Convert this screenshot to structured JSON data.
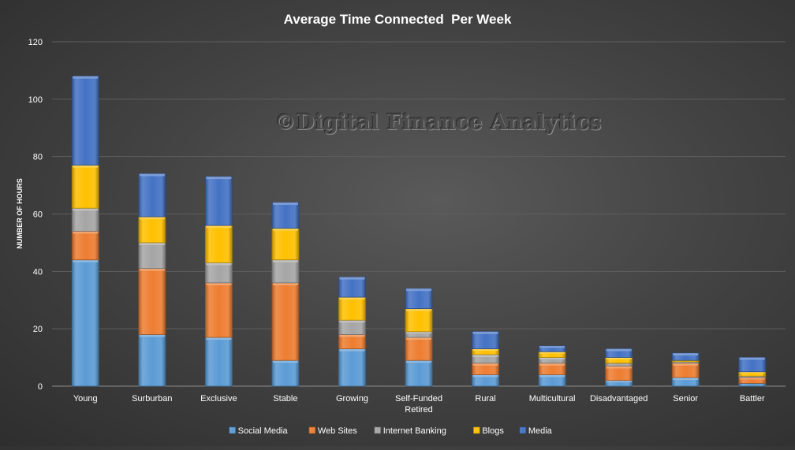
{
  "chart_data": {
    "type": "bar",
    "stacked": true,
    "title": "Average Time Connected  Per Week",
    "ylabel": "NUMBER OF HOURS",
    "xlabel": "",
    "ylim": [
      0,
      120
    ],
    "yticks": [
      0,
      20,
      40,
      60,
      80,
      100,
      120
    ],
    "grid": true,
    "legend_position": "bottom",
    "categories": [
      "Young",
      "Surburban",
      "Exclusive",
      "Stable",
      "Growing",
      "Self-Funded Retired",
      "Rural",
      "Multicultural",
      "Disadvantaged",
      "Senior",
      "Battler"
    ],
    "series": [
      {
        "name": "Social Media",
        "color": "#5b9bd5",
        "values": [
          44,
          18,
          17,
          9,
          13,
          9,
          4,
          4,
          2,
          3,
          1
        ]
      },
      {
        "name": "Web Sites",
        "color": "#ed7d31",
        "values": [
          10,
          23,
          19,
          27,
          5,
          8,
          4,
          4,
          5,
          5,
          2
        ]
      },
      {
        "name": "Internet Banking",
        "color": "#a5a5a5",
        "values": [
          8,
          9,
          7,
          8,
          5,
          2,
          3,
          2,
          1,
          0.5,
          0.5
        ]
      },
      {
        "name": "Blogs",
        "color": "#ffc000",
        "values": [
          15,
          9,
          13,
          11,
          8,
          8,
          2,
          2,
          2,
          0.5,
          1.5
        ]
      },
      {
        "name": "Media",
        "color": "#4472c4",
        "values": [
          31,
          15,
          17,
          9,
          7,
          7,
          6,
          2,
          3,
          2.5,
          5
        ]
      }
    ],
    "watermark": "©Digital Finance Analytics"
  }
}
